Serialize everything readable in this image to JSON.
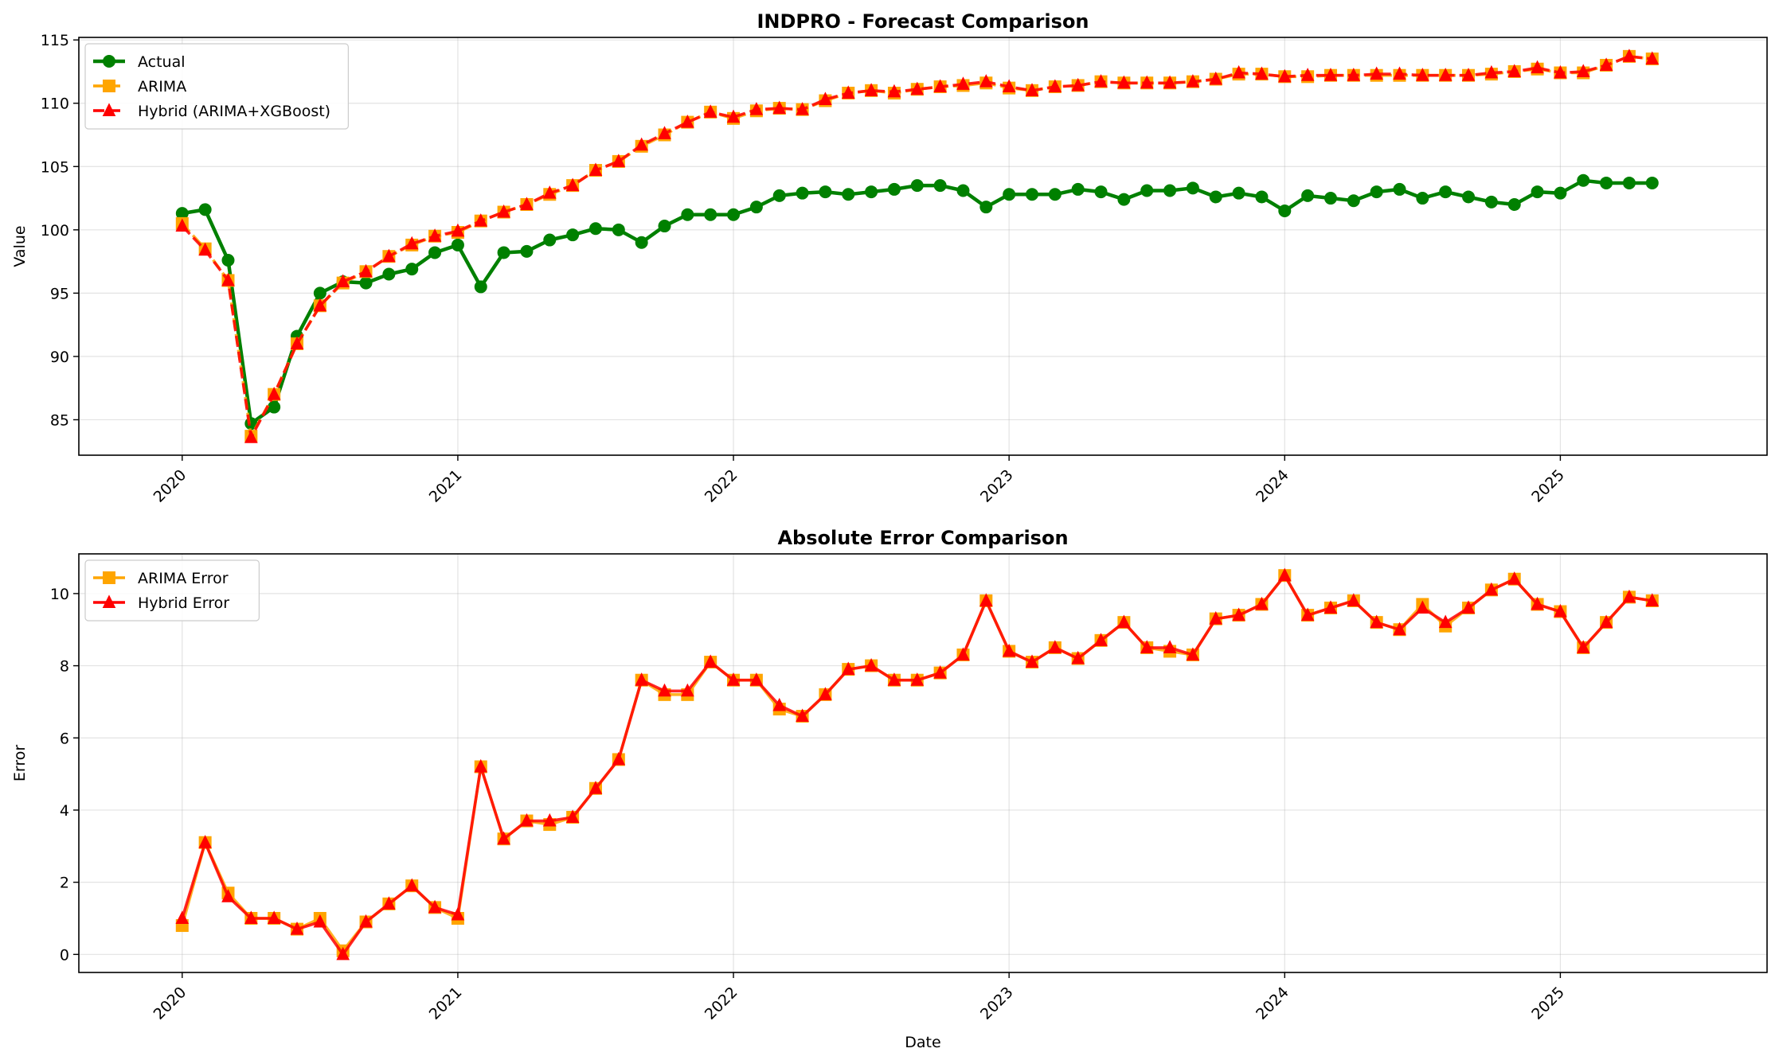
{
  "chart_data": [
    {
      "type": "line",
      "title": "INDPRO - Forecast Comparison",
      "xlabel": "",
      "ylabel": "Value",
      "x": [
        "2020-01",
        "2020-02",
        "2020-03",
        "2020-04",
        "2020-05",
        "2020-06",
        "2020-07",
        "2020-08",
        "2020-09",
        "2020-10",
        "2020-11",
        "2020-12",
        "2021-01",
        "2021-02",
        "2021-03",
        "2021-04",
        "2021-05",
        "2021-06",
        "2021-07",
        "2021-08",
        "2021-09",
        "2021-10",
        "2021-11",
        "2021-12",
        "2022-01",
        "2022-02",
        "2022-03",
        "2022-04",
        "2022-05",
        "2022-06",
        "2022-07",
        "2022-08",
        "2022-09",
        "2022-10",
        "2022-11",
        "2022-12",
        "2023-01",
        "2023-02",
        "2023-03",
        "2023-04",
        "2023-05",
        "2023-06",
        "2023-07",
        "2023-08",
        "2023-09",
        "2023-10",
        "2023-11",
        "2023-12",
        "2024-01",
        "2024-02",
        "2024-03",
        "2024-04",
        "2024-05",
        "2024-06",
        "2024-07",
        "2024-08",
        "2024-09",
        "2024-10",
        "2024-11",
        "2024-12",
        "2025-01",
        "2025-02",
        "2025-03",
        "2025-04",
        "2025-05"
      ],
      "xticks": [
        "2020",
        "2021",
        "2022",
        "2023",
        "2024",
        "2025"
      ],
      "ylim": [
        82.2,
        115.2
      ],
      "yticks": [
        85,
        90,
        95,
        100,
        105,
        110,
        115
      ],
      "grid": true,
      "legend_position": "upper-left",
      "series": [
        {
          "name": "Actual",
          "color": "#008000",
          "marker": "circle",
          "linestyle": "solid",
          "values": [
            101.3,
            101.6,
            97.6,
            84.7,
            86.0,
            91.6,
            95.0,
            95.9,
            95.8,
            96.5,
            96.9,
            98.2,
            98.8,
            95.5,
            98.2,
            98.3,
            99.2,
            99.6,
            100.1,
            100.0,
            99.0,
            100.3,
            101.2,
            101.2,
            101.2,
            101.8,
            102.7,
            102.9,
            103.0,
            102.8,
            103.0,
            103.2,
            103.5,
            103.5,
            103.1,
            101.8,
            102.8,
            102.8,
            102.8,
            103.2,
            103.0,
            102.4,
            103.1,
            103.1,
            103.3,
            102.6,
            102.9,
            102.6,
            101.5,
            102.7,
            102.5,
            102.3,
            103.0,
            103.2,
            102.5,
            103.0,
            102.6,
            102.2,
            102.0,
            103.0,
            102.9,
            103.9,
            103.7,
            103.7,
            103.7
          ]
        },
        {
          "name": "ARIMA",
          "color": "#FFA500",
          "marker": "square",
          "linestyle": "dashed",
          "values": [
            100.5,
            98.5,
            96.0,
            83.7,
            87.0,
            91.0,
            94.0,
            95.8,
            96.7,
            97.9,
            98.8,
            99.5,
            99.8,
            100.7,
            101.4,
            102.0,
            102.8,
            103.5,
            104.7,
            105.4,
            106.6,
            107.5,
            108.5,
            109.3,
            108.8,
            109.4,
            109.6,
            109.5,
            110.2,
            110.8,
            111.0,
            110.8,
            111.1,
            111.3,
            111.4,
            111.6,
            111.2,
            111.0,
            111.3,
            111.4,
            111.7,
            111.6,
            111.6,
            111.6,
            111.7,
            111.9,
            112.3,
            112.3,
            112.1,
            112.1,
            112.2,
            112.2,
            112.2,
            112.2,
            112.2,
            112.2,
            112.2,
            112.3,
            112.5,
            112.7,
            112.4,
            112.4,
            113.0,
            113.7,
            113.5
          ]
        },
        {
          "name": "Hybrid (ARIMA+XGBoost)",
          "color": "#FF0000",
          "marker": "triangle",
          "linestyle": "dashed",
          "values": [
            100.3,
            98.4,
            96.0,
            83.6,
            87.0,
            91.0,
            94.0,
            95.9,
            96.7,
            97.9,
            98.9,
            99.5,
            99.9,
            100.7,
            101.4,
            102.0,
            102.9,
            103.5,
            104.7,
            105.4,
            106.7,
            107.6,
            108.5,
            109.3,
            108.9,
            109.5,
            109.6,
            109.5,
            110.3,
            110.8,
            111.0,
            110.9,
            111.1,
            111.3,
            111.5,
            111.7,
            111.3,
            111.0,
            111.3,
            111.4,
            111.7,
            111.6,
            111.6,
            111.6,
            111.7,
            111.9,
            112.4,
            112.3,
            112.1,
            112.2,
            112.2,
            112.2,
            112.3,
            112.3,
            112.2,
            112.2,
            112.2,
            112.4,
            112.5,
            112.8,
            112.4,
            112.5,
            113.0,
            113.7,
            113.5
          ]
        }
      ]
    },
    {
      "type": "line",
      "title": "Absolute Error Comparison",
      "xlabel": "Date",
      "ylabel": "Error",
      "x": [
        "2020-01",
        "2020-02",
        "2020-03",
        "2020-04",
        "2020-05",
        "2020-06",
        "2020-07",
        "2020-08",
        "2020-09",
        "2020-10",
        "2020-11",
        "2020-12",
        "2021-01",
        "2021-02",
        "2021-03",
        "2021-04",
        "2021-05",
        "2021-06",
        "2021-07",
        "2021-08",
        "2021-09",
        "2021-10",
        "2021-11",
        "2021-12",
        "2022-01",
        "2022-02",
        "2022-03",
        "2022-04",
        "2022-05",
        "2022-06",
        "2022-07",
        "2022-08",
        "2022-09",
        "2022-10",
        "2022-11",
        "2022-12",
        "2023-01",
        "2023-02",
        "2023-03",
        "2023-04",
        "2023-05",
        "2023-06",
        "2023-07",
        "2023-08",
        "2023-09",
        "2023-10",
        "2023-11",
        "2023-12",
        "2024-01",
        "2024-02",
        "2024-03",
        "2024-04",
        "2024-05",
        "2024-06",
        "2024-07",
        "2024-08",
        "2024-09",
        "2024-10",
        "2024-11",
        "2024-12",
        "2025-01",
        "2025-02",
        "2025-03",
        "2025-04",
        "2025-05"
      ],
      "xticks": [
        "2020",
        "2021",
        "2022",
        "2023",
        "2024",
        "2025"
      ],
      "ylim": [
        -0.5,
        11.1
      ],
      "yticks": [
        0,
        2,
        4,
        6,
        8,
        10
      ],
      "grid": true,
      "legend_position": "upper-left",
      "series": [
        {
          "name": "ARIMA Error",
          "color": "#FFA500",
          "marker": "square",
          "linestyle": "solid",
          "values": [
            0.8,
            3.1,
            1.7,
            1.0,
            1.0,
            0.7,
            1.0,
            0.1,
            0.9,
            1.4,
            1.9,
            1.3,
            1.0,
            5.2,
            3.2,
            3.7,
            3.6,
            3.8,
            4.6,
            5.4,
            7.6,
            7.2,
            7.2,
            8.1,
            7.6,
            7.6,
            6.8,
            6.6,
            7.2,
            7.9,
            8.0,
            7.6,
            7.6,
            7.8,
            8.3,
            9.8,
            8.4,
            8.1,
            8.5,
            8.2,
            8.7,
            9.2,
            8.5,
            8.4,
            8.3,
            9.3,
            9.4,
            9.7,
            10.5,
            9.4,
            9.6,
            9.8,
            9.2,
            9.0,
            9.7,
            9.1,
            9.6,
            10.1,
            10.4,
            9.7,
            9.5,
            8.5,
            9.2,
            9.9,
            9.8
          ]
        },
        {
          "name": "Hybrid Error",
          "color": "#FF0000",
          "marker": "triangle",
          "linestyle": "solid",
          "values": [
            1.0,
            3.1,
            1.6,
            1.0,
            1.0,
            0.7,
            0.9,
            0.0,
            0.9,
            1.4,
            1.9,
            1.3,
            1.1,
            5.2,
            3.2,
            3.7,
            3.7,
            3.8,
            4.6,
            5.4,
            7.6,
            7.3,
            7.3,
            8.1,
            7.6,
            7.6,
            6.9,
            6.6,
            7.2,
            7.9,
            8.0,
            7.6,
            7.6,
            7.8,
            8.3,
            9.8,
            8.4,
            8.1,
            8.5,
            8.2,
            8.7,
            9.2,
            8.5,
            8.5,
            8.3,
            9.3,
            9.4,
            9.7,
            10.5,
            9.4,
            9.6,
            9.8,
            9.2,
            9.0,
            9.6,
            9.2,
            9.6,
            10.1,
            10.4,
            9.7,
            9.5,
            8.5,
            9.2,
            9.9,
            9.8
          ]
        }
      ]
    }
  ]
}
